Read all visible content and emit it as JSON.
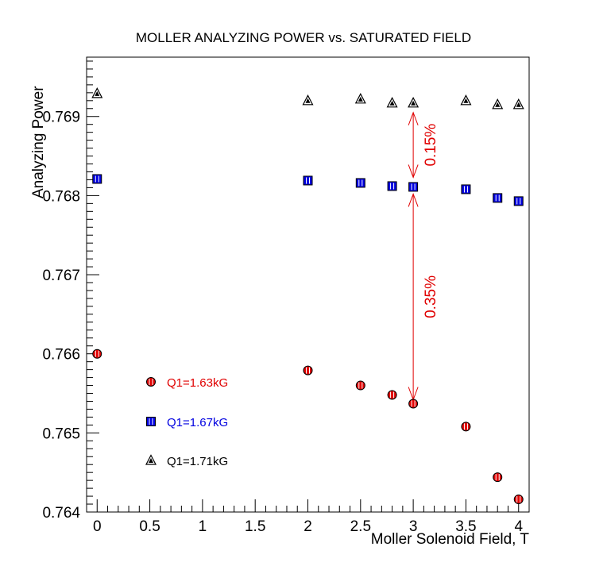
{
  "chart_data": {
    "type": "scatter",
    "title": "MOLLER ANALYZING POWER vs. SATURATED FIELD",
    "xlabel": "Moller Solenoid Field, T",
    "ylabel": "Analyzing Power",
    "xlim": [
      -0.1,
      4.1
    ],
    "ylim": [
      0.764,
      0.76975
    ],
    "xticks": [
      0,
      0.5,
      1,
      1.5,
      2,
      2.5,
      3,
      3.5,
      4
    ],
    "xtick_labels": [
      "0",
      "0.5",
      "1",
      "1.5",
      "2",
      "2.5",
      "3",
      "3.5",
      "4"
    ],
    "yticks": [
      0.764,
      0.765,
      0.766,
      0.767,
      0.768,
      0.769
    ],
    "ytick_labels": [
      "0.764",
      "0.765",
      "0.766",
      "0.767",
      "0.768",
      "0.769"
    ],
    "grid": false,
    "legend_position": "lower-left",
    "series": [
      {
        "name": "Q1=1.63kG",
        "color": "#e00000",
        "marker": "circle",
        "x": [
          0,
          2,
          2.5,
          2.8,
          3,
          3.5,
          3.8,
          4
        ],
        "y": [
          0.766,
          0.76579,
          0.7656,
          0.76548,
          0.76537,
          0.76508,
          0.76444,
          0.76416
        ]
      },
      {
        "name": "Q1=1.67kG",
        "color": "#0000e0",
        "marker": "square",
        "x": [
          0,
          2,
          2.5,
          2.8,
          3,
          3.5,
          3.8,
          4
        ],
        "y": [
          0.76821,
          0.76819,
          0.76816,
          0.76812,
          0.76811,
          0.76808,
          0.76797,
          0.76793
        ]
      },
      {
        "name": "Q1=1.71kG",
        "color": "#000000",
        "marker": "triangle",
        "x": [
          0,
          2,
          2.5,
          2.8,
          3,
          3.5,
          3.8,
          4
        ],
        "y": [
          0.76929,
          0.7692,
          0.76922,
          0.76917,
          0.76917,
          0.7692,
          0.76915,
          0.76915
        ]
      }
    ],
    "annotations": [
      {
        "text": "0.15%",
        "x": 3,
        "y_from": 0.76905,
        "y_to": 0.76823,
        "color": "#e00000"
      },
      {
        "text": "0.35%",
        "x": 3,
        "y_from": 0.76802,
        "y_to": 0.76542,
        "color": "#e00000"
      }
    ]
  }
}
